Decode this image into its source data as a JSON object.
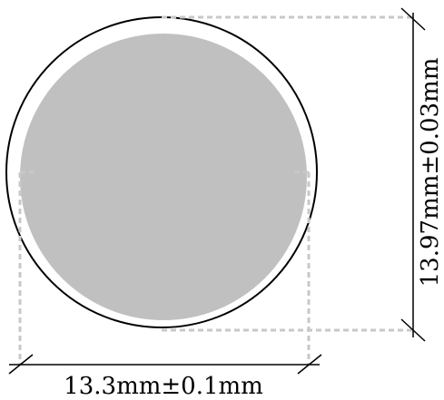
{
  "diagram": {
    "width_label": "13.3mm±0.1mm",
    "height_label": "13.97mm±0.03mm",
    "colors": {
      "fill": "#c0c0c0",
      "outline": "#000000",
      "dashes": "#c8c8c8",
      "background": "#ffffff"
    }
  }
}
